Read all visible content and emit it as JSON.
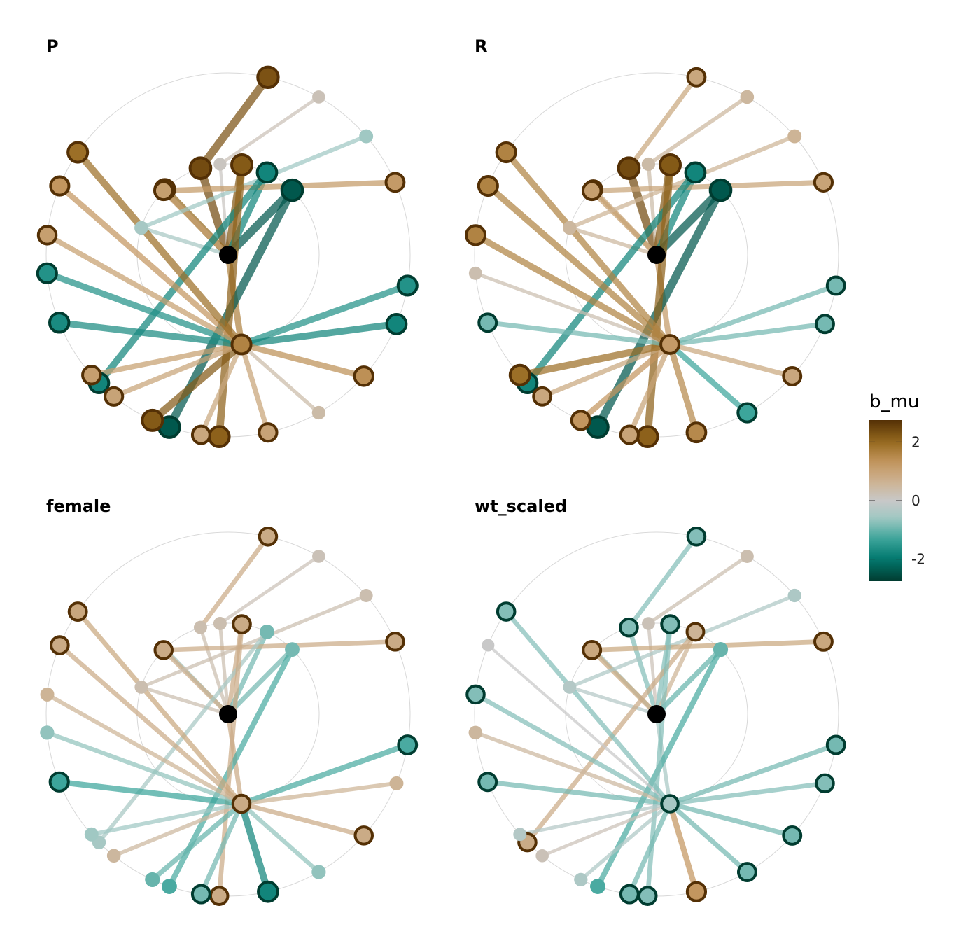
{
  "panels": [
    {
      "title": "P",
      "root": {
        "value": null
      },
      "mid": [
        {
          "value": 2.4,
          "hl": true
        },
        {
          "value": 2.0,
          "hl": true
        },
        {
          "value": 0.1,
          "hl": false
        },
        {
          "value": 2.2,
          "hl": true
        },
        {
          "value": -1.8,
          "hl": true
        },
        {
          "value": -2.4,
          "hl": true
        },
        {
          "value": -0.5,
          "hl": false
        },
        {
          "value": 1.1,
          "hl": true
        },
        {
          "value": 1.6,
          "hl": true
        }
      ],
      "leaves_top": [
        {
          "value": 2.3,
          "hl": true,
          "parent": 0
        },
        {
          "value": 0.2,
          "hl": false,
          "parent": 2
        },
        {
          "value": -0.6,
          "hl": false,
          "parent": 6
        },
        {
          "value": 1.2,
          "hl": true,
          "parent": 7
        },
        {
          "value": -1.8,
          "hl": true,
          "parent": 4
        },
        {
          "value": -2.4,
          "hl": true,
          "parent": 5
        },
        {
          "value": 2.1,
          "hl": true,
          "parent": 3
        }
      ],
      "leaves_bottom": [
        {
          "value": -1.6,
          "hl": true
        },
        {
          "value": -1.8,
          "hl": true
        },
        {
          "value": 1.4,
          "hl": true
        },
        {
          "value": 0.4,
          "hl": false
        },
        {
          "value": 1.0,
          "hl": true
        },
        {
          "value": 0.9,
          "hl": true
        },
        {
          "value": 2.2,
          "hl": true
        },
        {
          "value": 1.0,
          "hl": true
        },
        {
          "value": 1.1,
          "hl": true
        },
        {
          "value": -1.7,
          "hl": true
        },
        {
          "value": -1.6,
          "hl": true
        },
        {
          "value": 1.1,
          "hl": true
        },
        {
          "value": 1.3,
          "hl": true
        },
        {
          "value": 1.9,
          "hl": true
        }
      ]
    },
    {
      "title": "R",
      "root": {
        "value": null
      },
      "mid": [
        {
          "value": 2.4,
          "hl": true
        },
        {
          "value": 0.9,
          "hl": true
        },
        {
          "value": 0.4,
          "hl": false
        },
        {
          "value": 2.2,
          "hl": true
        },
        {
          "value": -1.8,
          "hl": true
        },
        {
          "value": -2.4,
          "hl": true
        },
        {
          "value": 0.5,
          "hl": false
        },
        {
          "value": 1.1,
          "hl": true
        },
        {
          "value": 1.2,
          "hl": true
        }
      ],
      "leaves_top": [
        {
          "value": 0.9,
          "hl": true,
          "parent": 0
        },
        {
          "value": 0.5,
          "hl": false,
          "parent": 2
        },
        {
          "value": 0.6,
          "hl": false,
          "parent": 6
        },
        {
          "value": 1.0,
          "hl": true,
          "parent": 7
        },
        {
          "value": -1.8,
          "hl": true,
          "parent": 4
        },
        {
          "value": -2.4,
          "hl": true,
          "parent": 5
        },
        {
          "value": 2.1,
          "hl": true,
          "parent": 3
        }
      ],
      "leaves_bottom": [
        {
          "value": -0.9,
          "hl": true
        },
        {
          "value": -0.9,
          "hl": true
        },
        {
          "value": 0.9,
          "hl": true
        },
        {
          "value": -1.3,
          "hl": true
        },
        {
          "value": 1.5,
          "hl": true
        },
        {
          "value": 1.0,
          "hl": true
        },
        {
          "value": 1.3,
          "hl": true
        },
        {
          "value": 0.9,
          "hl": true
        },
        {
          "value": 1.9,
          "hl": true
        },
        {
          "value": -0.9,
          "hl": true
        },
        {
          "value": 0.3,
          "hl": false
        },
        {
          "value": 1.6,
          "hl": true
        },
        {
          "value": 1.6,
          "hl": true
        },
        {
          "value": 1.6,
          "hl": true
        }
      ]
    },
    {
      "title": "female",
      "root": {
        "value": null
      },
      "mid": [
        {
          "value": 0.3,
          "hl": false
        },
        {
          "value": -0.5,
          "hl": false
        },
        {
          "value": 0.3,
          "hl": false
        },
        {
          "value": 0.8,
          "hl": true
        },
        {
          "value": -0.9,
          "hl": false
        },
        {
          "value": -0.9,
          "hl": false
        },
        {
          "value": 0.3,
          "hl": false
        },
        {
          "value": 0.8,
          "hl": true
        },
        {
          "value": 0.8,
          "hl": true
        }
      ],
      "leaves_top": [
        {
          "value": 0.8,
          "hl": true,
          "parent": 0
        },
        {
          "value": 0.2,
          "hl": false,
          "parent": 2
        },
        {
          "value": 0.3,
          "hl": false,
          "parent": 6
        },
        {
          "value": 0.8,
          "hl": true,
          "parent": 7
        },
        {
          "value": -0.5,
          "hl": false,
          "parent": 4
        },
        {
          "value": -1.2,
          "hl": false,
          "parent": 5
        },
        {
          "value": 0.8,
          "hl": true,
          "parent": 3
        }
      ],
      "leaves_bottom": [
        {
          "value": -1.2,
          "hl": true
        },
        {
          "value": 0.6,
          "hl": false
        },
        {
          "value": 0.8,
          "hl": true
        },
        {
          "value": -0.7,
          "hl": false
        },
        {
          "value": -1.8,
          "hl": true
        },
        {
          "value": -0.9,
          "hl": true
        },
        {
          "value": -1.0,
          "hl": false
        },
        {
          "value": 0.5,
          "hl": false
        },
        {
          "value": -0.6,
          "hl": false
        },
        {
          "value": -1.3,
          "hl": true
        },
        {
          "value": -0.7,
          "hl": false
        },
        {
          "value": 0.6,
          "hl": false
        },
        {
          "value": 0.8,
          "hl": true
        },
        {
          "value": 0.9,
          "hl": true
        }
      ]
    },
    {
      "title": "wt_scaled",
      "root": {
        "value": null
      },
      "mid": [
        {
          "value": -0.8,
          "hl": true
        },
        {
          "value": -0.4,
          "hl": false
        },
        {
          "value": 0.2,
          "hl": false
        },
        {
          "value": -0.8,
          "hl": true
        },
        {
          "value": 0.6,
          "hl": true
        },
        {
          "value": -1.0,
          "hl": false
        },
        {
          "value": -0.3,
          "hl": false
        },
        {
          "value": 0.9,
          "hl": true
        },
        {
          "value": -0.5,
          "hl": true
        }
      ],
      "leaves_top": [
        {
          "value": -0.8,
          "hl": true,
          "parent": 0
        },
        {
          "value": 0.3,
          "hl": false,
          "parent": 2
        },
        {
          "value": -0.4,
          "hl": false,
          "parent": 6
        },
        {
          "value": 0.9,
          "hl": true,
          "parent": 7
        },
        {
          "value": 0.8,
          "hl": true,
          "parent": 4
        },
        {
          "value": -1.2,
          "hl": false,
          "parent": 5
        },
        {
          "value": -0.8,
          "hl": true,
          "parent": 3
        }
      ],
      "leaves_bottom": [
        {
          "value": -0.9,
          "hl": true
        },
        {
          "value": -0.8,
          "hl": true
        },
        {
          "value": -0.9,
          "hl": true
        },
        {
          "value": -0.9,
          "hl": true
        },
        {
          "value": 1.3,
          "hl": true
        },
        {
          "value": -0.9,
          "hl": true
        },
        {
          "value": -0.4,
          "hl": false
        },
        {
          "value": 0.2,
          "hl": false
        },
        {
          "value": -0.3,
          "hl": false
        },
        {
          "value": -0.9,
          "hl": true
        },
        {
          "value": 0.5,
          "hl": false
        },
        {
          "value": -0.8,
          "hl": true
        },
        {
          "value": 0.0,
          "hl": false
        },
        {
          "value": -0.8,
          "hl": true
        }
      ]
    }
  ],
  "legend": {
    "title": "b_mu",
    "ticks": [
      {
        "label": "2",
        "value": 2
      },
      {
        "label": "0",
        "value": 0
      },
      {
        "label": "-2",
        "value": -2
      }
    ],
    "range": [
      -2.75,
      2.75
    ]
  },
  "colors": {
    "root_node": "#000000",
    "grid_circle": "#d8d8d8",
    "highlight_outline_brown": "#543005",
    "highlight_outline_teal": "#003c30"
  }
}
